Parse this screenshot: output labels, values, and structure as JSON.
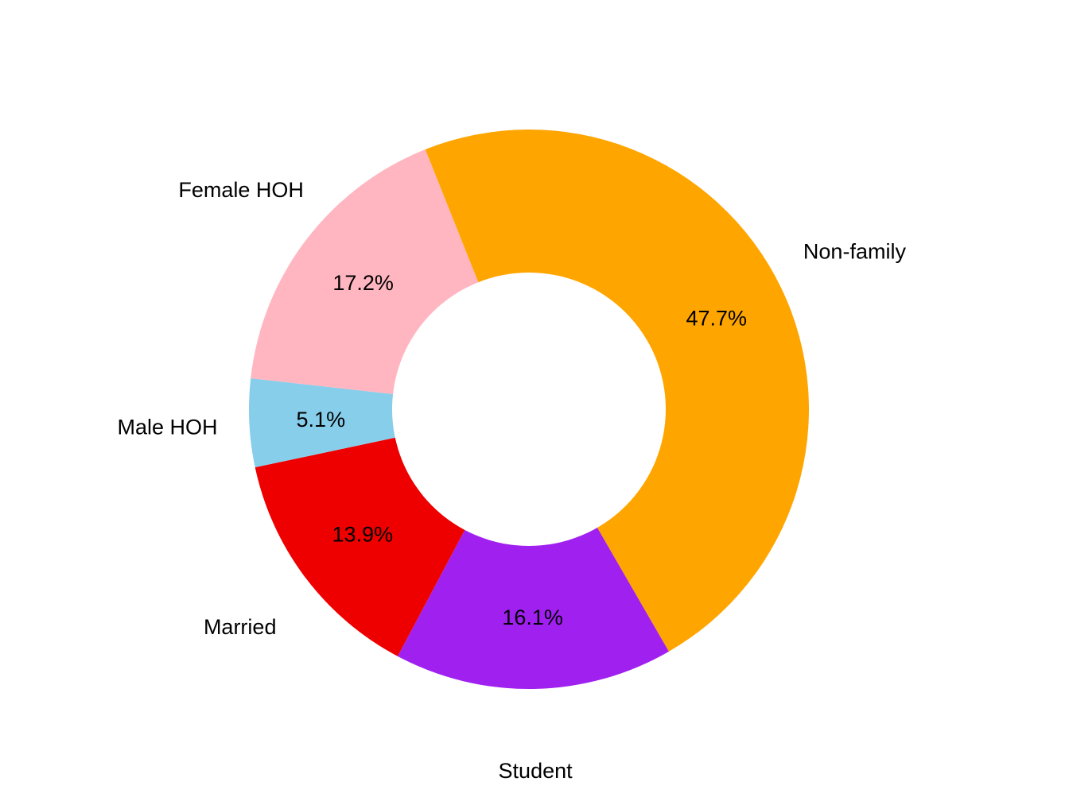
{
  "chart_data": {
    "type": "pie",
    "donut": true,
    "start_angle_deg": 300,
    "direction": "clockwise",
    "slices": [
      {
        "label": "Student",
        "value": 16.1,
        "value_label": "16.1%",
        "color": "#A020F0"
      },
      {
        "label": "Married",
        "value": 13.9,
        "value_label": "13.9%",
        "color": "#EE0000"
      },
      {
        "label": "Male HOH",
        "value": 5.1,
        "value_label": "5.1%",
        "color": "#87CEEB"
      },
      {
        "label": "Female HOH",
        "value": 17.2,
        "value_label": "17.2%",
        "color": "#FFB6C1"
      },
      {
        "label": "Non-family",
        "value": 47.7,
        "value_label": "47.7%",
        "color": "#FFA500"
      }
    ],
    "legend": "none"
  }
}
